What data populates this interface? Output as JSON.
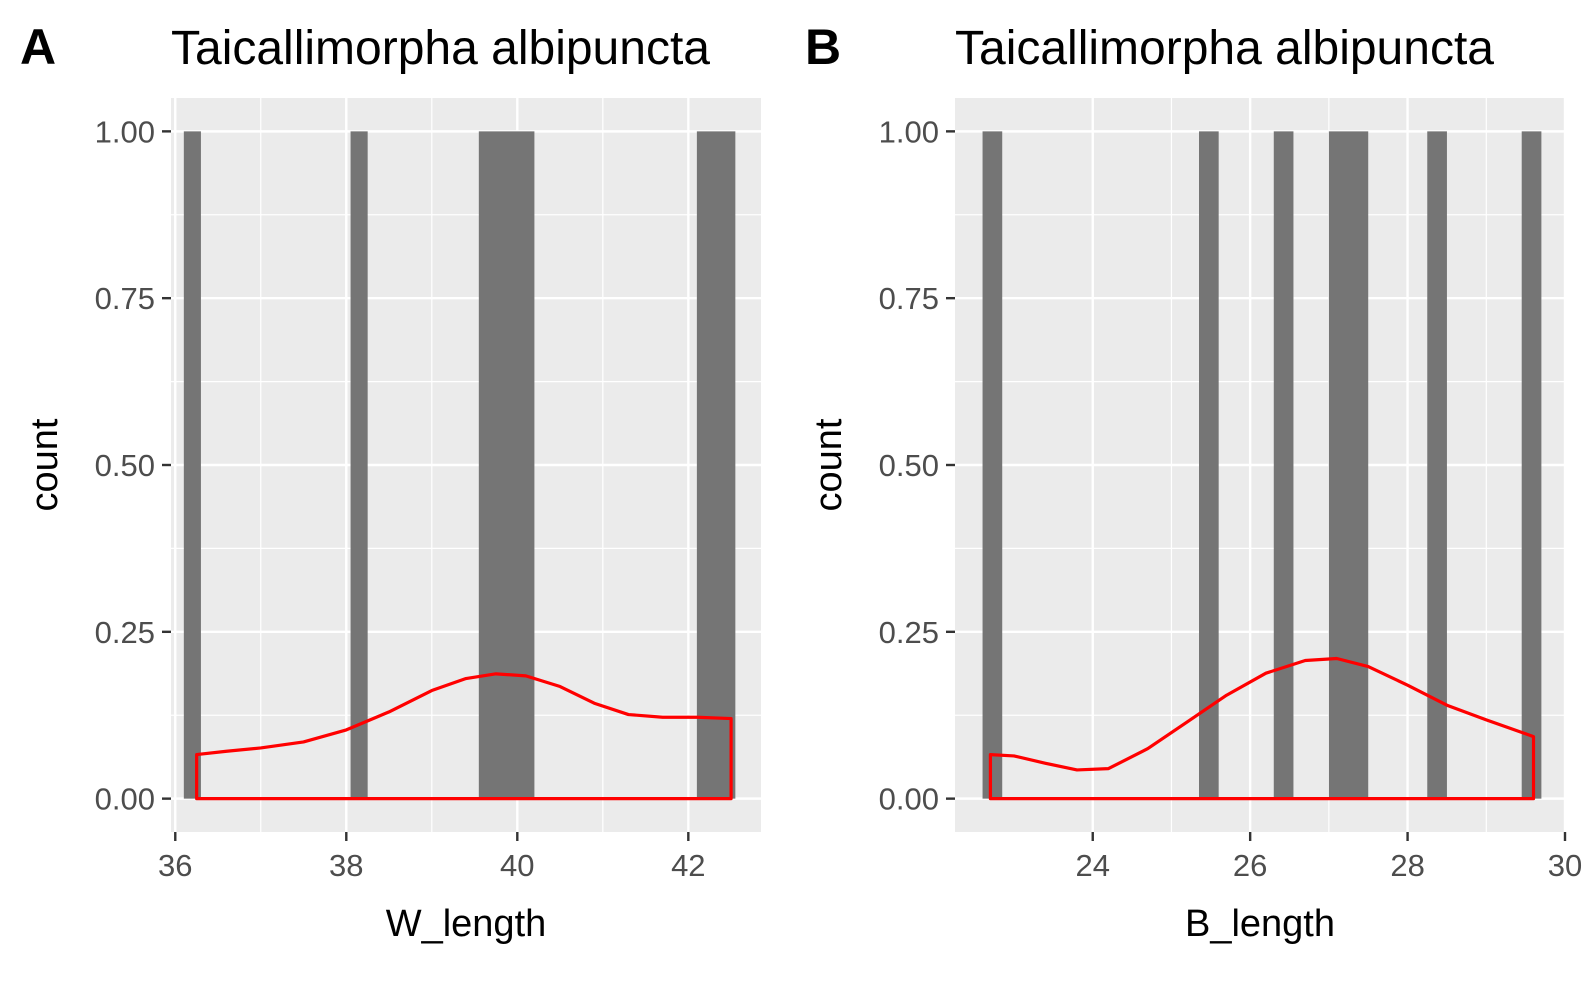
{
  "chart_data": [
    {
      "panel": "A",
      "type": "bar",
      "title": "Taicallimorpha albipuncta",
      "xlabel": "W_length",
      "ylabel": "count",
      "xlim": [
        35.95,
        42.85
      ],
      "ylim": [
        -0.05,
        1.05
      ],
      "xticks": [
        36,
        38,
        40,
        42
      ],
      "xtick_labels": [
        "36",
        "38",
        "40",
        "42"
      ],
      "yticks": [
        0,
        0.25,
        0.5,
        0.75,
        1
      ],
      "ytick_labels": [
        "0.00",
        "0.25",
        "0.50",
        "0.75",
        "1.00"
      ],
      "grid": true,
      "bars": [
        {
          "x0": 36.1,
          "x1": 36.3,
          "count": 1
        },
        {
          "x0": 38.05,
          "x1": 38.25,
          "count": 1
        },
        {
          "x0": 39.55,
          "x1": 40.2,
          "count": 1
        },
        {
          "x0": 42.1,
          "x1": 42.55,
          "count": 1
        }
      ],
      "density": {
        "color": "#ff0000",
        "x": [
          36.25,
          36.6,
          37.0,
          37.5,
          38.0,
          38.5,
          39.0,
          39.4,
          39.75,
          40.1,
          40.5,
          40.9,
          41.3,
          41.7,
          42.1,
          42.5
        ],
        "y": [
          0.066,
          0.071,
          0.076,
          0.085,
          0.103,
          0.13,
          0.162,
          0.18,
          0.187,
          0.184,
          0.168,
          0.143,
          0.126,
          0.122,
          0.122,
          0.12
        ]
      }
    },
    {
      "panel": "B",
      "type": "bar",
      "title": "Taicallimorpha albipuncta",
      "xlabel": "B_length",
      "ylabel": "count",
      "xlim": [
        22.25,
        30.0
      ],
      "ylim": [
        -0.05,
        1.05
      ],
      "xticks": [
        24,
        26,
        28,
        30
      ],
      "xtick_labels": [
        "24",
        "26",
        "28",
        "30"
      ],
      "yticks": [
        0,
        0.25,
        0.5,
        0.75,
        1
      ],
      "ytick_labels": [
        "0.00",
        "0.25",
        "0.50",
        "0.75",
        "1.00"
      ],
      "grid": true,
      "bars": [
        {
          "x0": 22.6,
          "x1": 22.85,
          "count": 1
        },
        {
          "x0": 25.35,
          "x1": 25.6,
          "count": 1
        },
        {
          "x0": 26.3,
          "x1": 26.55,
          "count": 1
        },
        {
          "x0": 27.0,
          "x1": 27.5,
          "count": 1
        },
        {
          "x0": 28.25,
          "x1": 28.5,
          "count": 1
        },
        {
          "x0": 29.45,
          "x1": 29.7,
          "count": 1
        }
      ],
      "density": {
        "color": "#ff0000",
        "x": [
          22.7,
          23.0,
          23.4,
          23.8,
          24.2,
          24.7,
          25.2,
          25.7,
          26.2,
          26.7,
          27.1,
          27.5,
          28.0,
          28.5,
          29.0,
          29.6
        ],
        "y": [
          0.066,
          0.064,
          0.053,
          0.043,
          0.045,
          0.075,
          0.115,
          0.155,
          0.188,
          0.207,
          0.21,
          0.198,
          0.17,
          0.14,
          0.118,
          0.093
        ]
      }
    }
  ]
}
